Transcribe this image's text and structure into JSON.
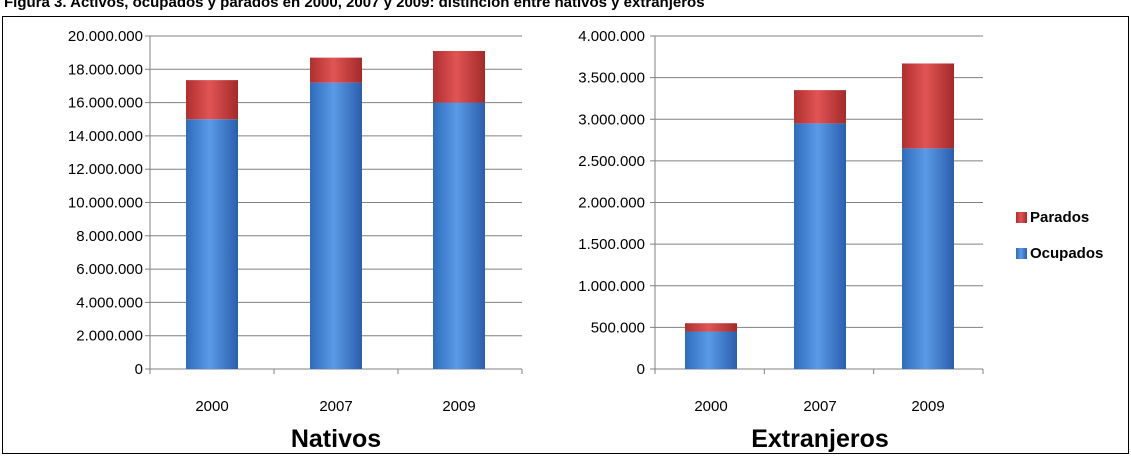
{
  "figure_title": "Figura 3. Activos, ocupados y parados en 2000, 2007 y 2009: distinción entre nativos y extranjeros",
  "colors": {
    "ocupados": "#3f7fd0",
    "parados": "#c83a3a",
    "axis": "#808080",
    "grid": "#808080"
  },
  "legend": {
    "placement": "right",
    "items": [
      "Parados",
      "Ocupados"
    ]
  },
  "chart_data": [
    {
      "type": "bar",
      "stacked": true,
      "title": "Nativos",
      "categories": [
        "2000",
        "2007",
        "2009"
      ],
      "ylim": [
        0,
        20000000
      ],
      "yticks": [
        "0",
        "2.000.000",
        "4.000.000",
        "6.000.000",
        "8.000.000",
        "10.000.000",
        "12.000.000",
        "14.000.000",
        "16.000.000",
        "18.000.000",
        "20.000.000"
      ],
      "series": [
        {
          "name": "Ocupados",
          "values": [
            15000000,
            17200000,
            16000000
          ]
        },
        {
          "name": "Parados",
          "values": [
            2350000,
            1500000,
            3100000
          ]
        }
      ],
      "grid": true
    },
    {
      "type": "bar",
      "stacked": true,
      "title": "Extranjeros",
      "categories": [
        "2000",
        "2007",
        "2009"
      ],
      "ylim": [
        0,
        4000000
      ],
      "yticks": [
        "0",
        "500.000",
        "1.000.000",
        "1.500.000",
        "2.000.000",
        "2.500.000",
        "3.000.000",
        "3.500.000",
        "4.000.000"
      ],
      "series": [
        {
          "name": "Ocupados",
          "values": [
            450000,
            2950000,
            2650000
          ]
        },
        {
          "name": "Parados",
          "values": [
            100000,
            400000,
            1020000
          ]
        }
      ],
      "grid": true
    }
  ]
}
